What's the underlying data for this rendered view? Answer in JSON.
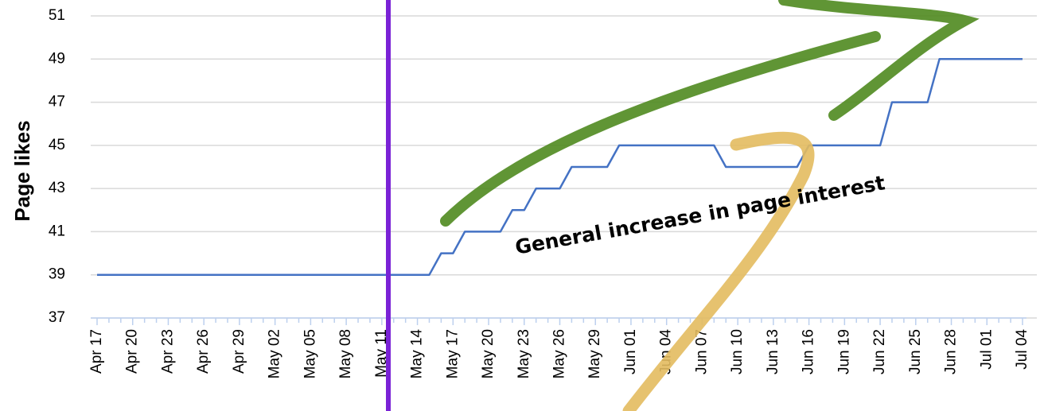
{
  "chart_data": {
    "type": "line",
    "y_label": "Page likes",
    "annotation": "General increase in page interest",
    "categories": [
      "Apr 17",
      null,
      null,
      "Apr 20",
      null,
      null,
      "Apr 23",
      null,
      null,
      "Apr 26",
      null,
      null,
      "Apr 29",
      null,
      null,
      "May 02",
      null,
      null,
      "May 05",
      null,
      null,
      "May 08",
      null,
      null,
      "May 11",
      null,
      null,
      "May 14",
      null,
      null,
      "May 17",
      null,
      null,
      "May 20",
      null,
      null,
      "May 23",
      null,
      null,
      "May 26",
      null,
      null,
      "May 29",
      null,
      null,
      "Jun 01",
      null,
      null,
      "Jun 04",
      null,
      null,
      "Jun 07",
      null,
      null,
      "Jun 10",
      null,
      null,
      "Jun 13",
      null,
      null,
      "Jun 16",
      null,
      null,
      "Jun 19",
      null,
      null,
      "Jun 22",
      null,
      null,
      "Jun 25",
      null,
      null,
      "Jun 28",
      null,
      null,
      "Jul 01",
      null,
      null,
      "Jul 04"
    ],
    "values": [
      39,
      39,
      39,
      39,
      39,
      39,
      39,
      39,
      39,
      39,
      39,
      39,
      39,
      39,
      39,
      39,
      39,
      39,
      39,
      39,
      39,
      39,
      39,
      39,
      39,
      39,
      39,
      39,
      39,
      40,
      40,
      41,
      41,
      41,
      41,
      42,
      42,
      43,
      43,
      43,
      44,
      44,
      44,
      44,
      45,
      45,
      45,
      45,
      45,
      45,
      45,
      45,
      45,
      44,
      44,
      44,
      44,
      44,
      44,
      44,
      45,
      45,
      45,
      45,
      45,
      45,
      45,
      47,
      47,
      47,
      47,
      49,
      49,
      49,
      49,
      49,
      49,
      49,
      49
    ],
    "color": "#4472c4",
    "ylim": [
      37,
      51
    ],
    "yticks": [
      37,
      39,
      41,
      43,
      45,
      47,
      49,
      51
    ],
    "grid": true
  }
}
